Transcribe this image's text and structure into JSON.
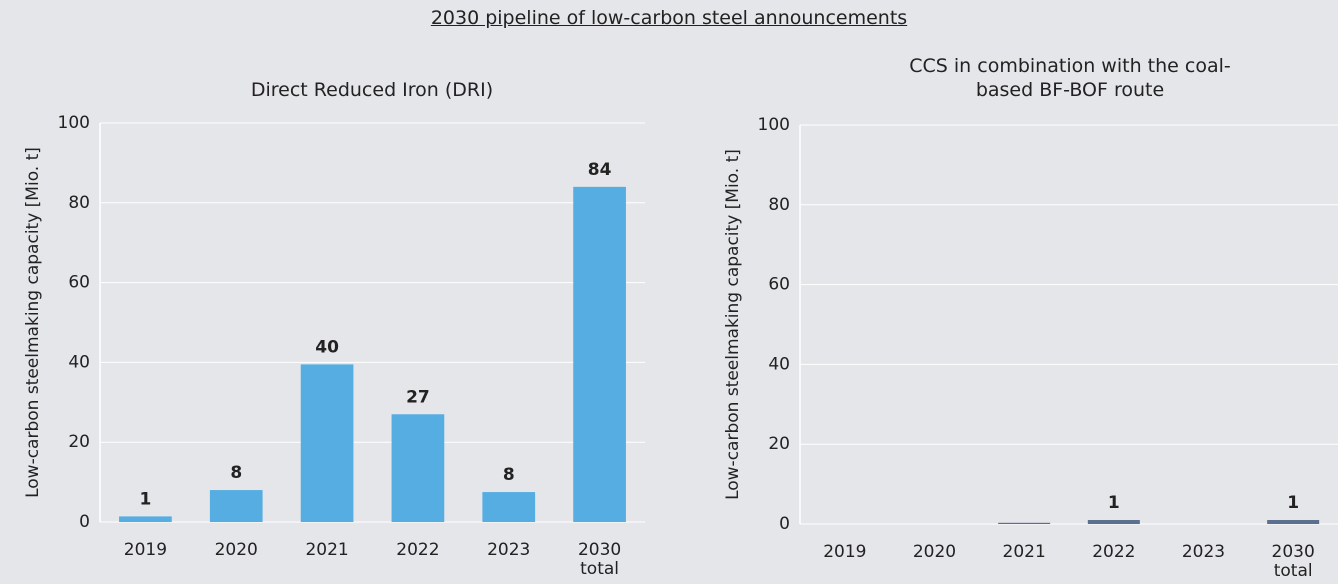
{
  "title": "2030 pipeline of low-carbon steel announcements",
  "chart_data": [
    {
      "type": "bar",
      "title": "Direct Reduced Iron (DRI)",
      "y_label": "Low-carbon steelmaking capacity [Mio. t]",
      "categories": [
        "2019",
        "2020",
        "2021",
        "2022",
        "2023",
        "2030 total"
      ],
      "values": [
        1.4,
        8,
        39.5,
        27,
        7.5,
        84
      ],
      "value_labels": [
        "1",
        "8",
        "40",
        "27",
        "8",
        "84"
      ],
      "color": "#55ade2",
      "ylim": [
        0,
        100
      ],
      "yticks": [
        0,
        20,
        40,
        60,
        80,
        100
      ],
      "grid": true
    },
    {
      "type": "bar",
      "title": "CCS in combination with the coal-based BF-BOF route",
      "y_label": "Low-carbon steelmaking capacity [Mio. t]",
      "categories": [
        "2019",
        "2020",
        "2021",
        "2022",
        "2023",
        "2030 total"
      ],
      "values": [
        0,
        0,
        0.3,
        1,
        0,
        1
      ],
      "value_labels": [
        null,
        null,
        null,
        "1",
        null,
        "1"
      ],
      "color": "#5b6f8f",
      "ylim": [
        0,
        100
      ],
      "yticks": [
        0,
        20,
        40,
        60,
        80,
        100
      ],
      "grid": true
    }
  ]
}
